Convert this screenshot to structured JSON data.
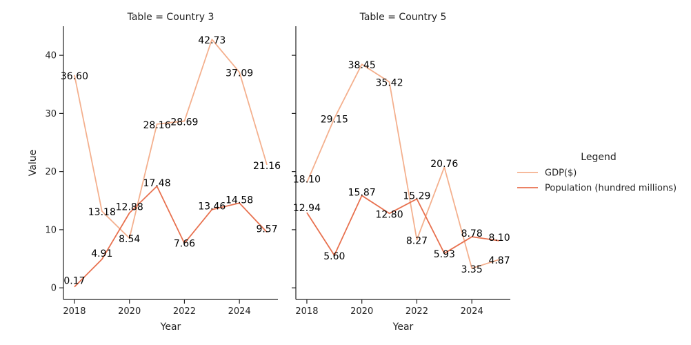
{
  "chart_data": {
    "type": "line",
    "xlabel": "Year",
    "ylabel": "Value",
    "ylim": [
      -2,
      45
    ],
    "xlim": [
      2017.6,
      2025.4
    ],
    "yticks": [
      0,
      10,
      20,
      30,
      40
    ],
    "xticks": [
      2018,
      2020,
      2022,
      2024
    ],
    "legend": {
      "title": "Legend",
      "position": "right",
      "entries": [
        {
          "name": "GDP($)",
          "color": "#f4b08e"
        },
        {
          "name": "Population (hundred millions)",
          "color": "#e8714f"
        }
      ]
    },
    "panels": [
      {
        "title": "Table = Country 3",
        "x": [
          2018,
          2019,
          2020,
          2021,
          2022,
          2023,
          2024,
          2025
        ],
        "series": [
          {
            "name": "GDP($)",
            "color": "#f4b08e",
            "values": [
              36.6,
              13.18,
              8.54,
              28.16,
              28.69,
              42.73,
              37.09,
              21.16
            ],
            "labels": [
              "36.60",
              "13.18",
              "8.54",
              "28.16",
              "28.69",
              "42.73",
              "37.09",
              "21.16"
            ]
          },
          {
            "name": "Population (hundred millions)",
            "color": "#e8714f",
            "values": [
              0.17,
              4.91,
              12.88,
              17.48,
              7.66,
              13.46,
              14.58,
              9.57
            ],
            "labels": [
              "0.17",
              "4.91",
              "12.88",
              "17.48",
              "7.66",
              "13.46",
              "14.58",
              "9.57"
            ]
          }
        ]
      },
      {
        "title": "Table = Country 5",
        "x": [
          2018,
          2019,
          2020,
          2021,
          2022,
          2023,
          2024,
          2025
        ],
        "series": [
          {
            "name": "GDP($)",
            "color": "#f4b08e",
            "values": [
              18.1,
              29.15,
              38.45,
              35.42,
              8.27,
              20.76,
              3.35,
              4.87
            ],
            "labels": [
              "18.10",
              "29.15",
              "38.45",
              "35.42",
              "8.27",
              "20.76",
              "3.35",
              "4.87"
            ]
          },
          {
            "name": "Population (hundred millions)",
            "color": "#e8714f",
            "values": [
              12.94,
              5.6,
              15.87,
              12.8,
              15.29,
              5.93,
              8.78,
              8.1
            ],
            "labels": [
              "12.94",
              "5.60",
              "15.87",
              "12.80",
              "15.29",
              "5.93",
              "8.78",
              "8.10"
            ]
          }
        ]
      }
    ]
  }
}
